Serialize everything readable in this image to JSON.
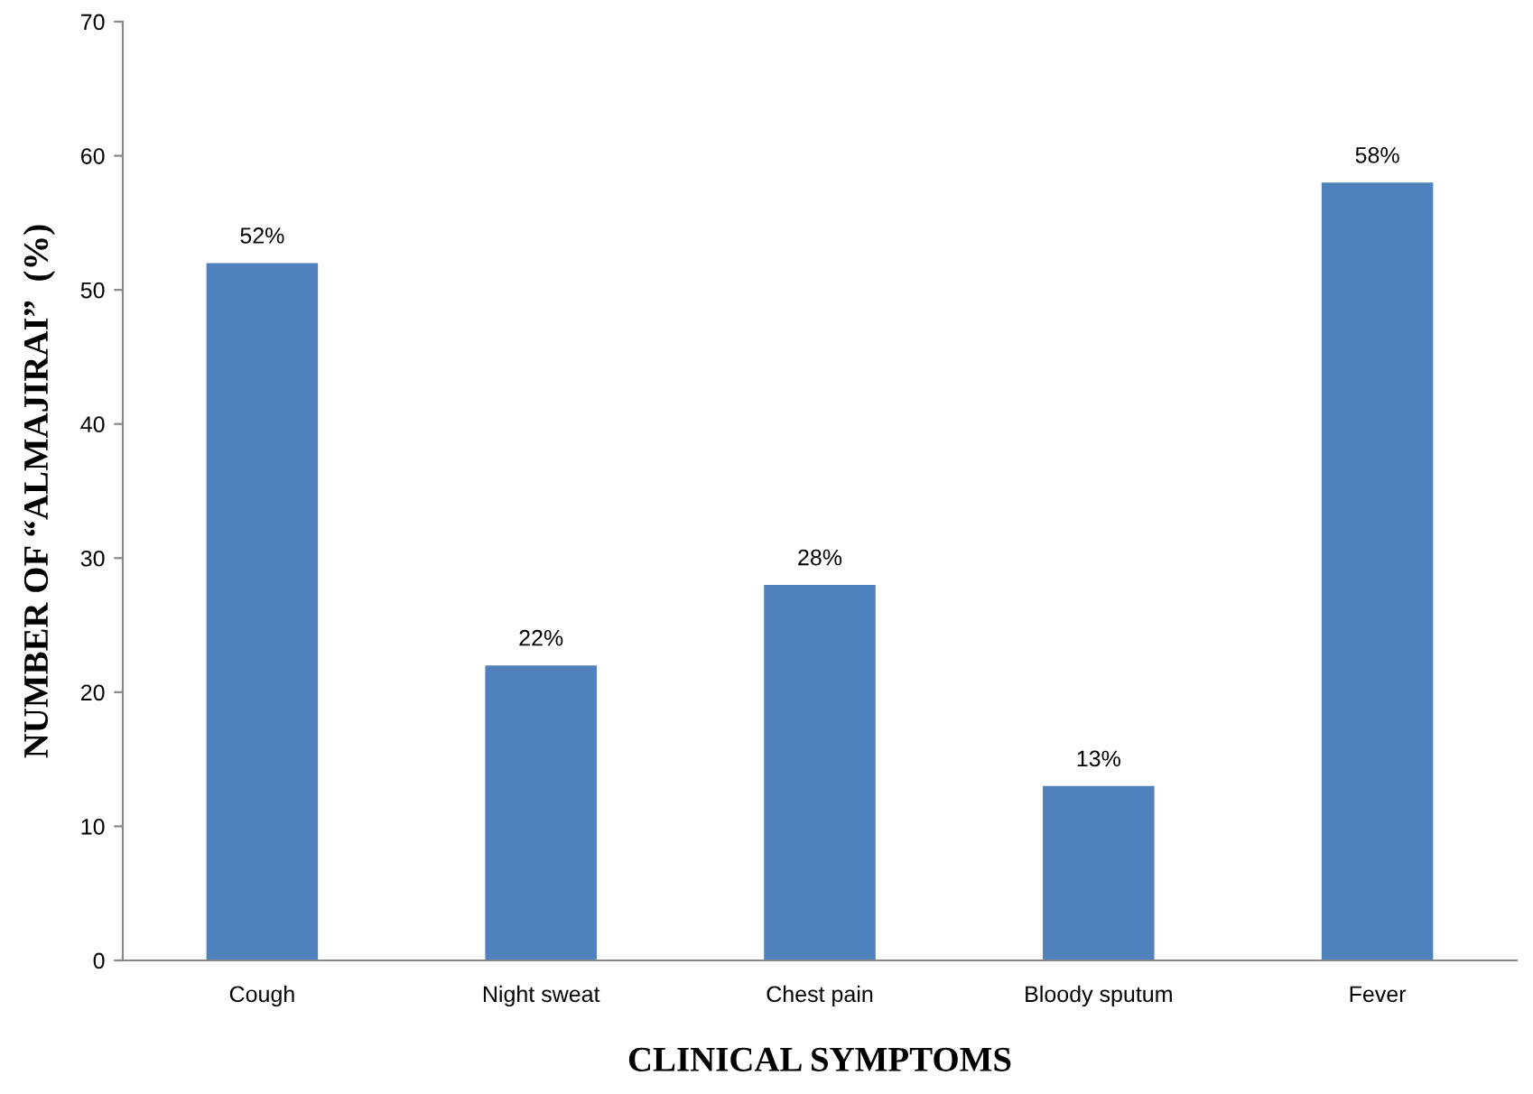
{
  "chart_data": {
    "type": "bar",
    "xlabel": "CLINICAL SYMPTOMS",
    "ylabel": "NUMBER OF “ALMAJIRAI”  (%)",
    "categories": [
      "Cough",
      "Night sweat",
      "Chest pain",
      "Bloody sputum",
      "Fever"
    ],
    "values": [
      52,
      22,
      28,
      13,
      58
    ],
    "value_labels": [
      "52%",
      "22%",
      "28%",
      "13%",
      "58%"
    ],
    "color": "#4f81bd",
    "ylim": [
      0,
      70
    ],
    "yticks": [
      0,
      10,
      20,
      30,
      40,
      50,
      60,
      70
    ],
    "grid": false,
    "legend": false
  }
}
